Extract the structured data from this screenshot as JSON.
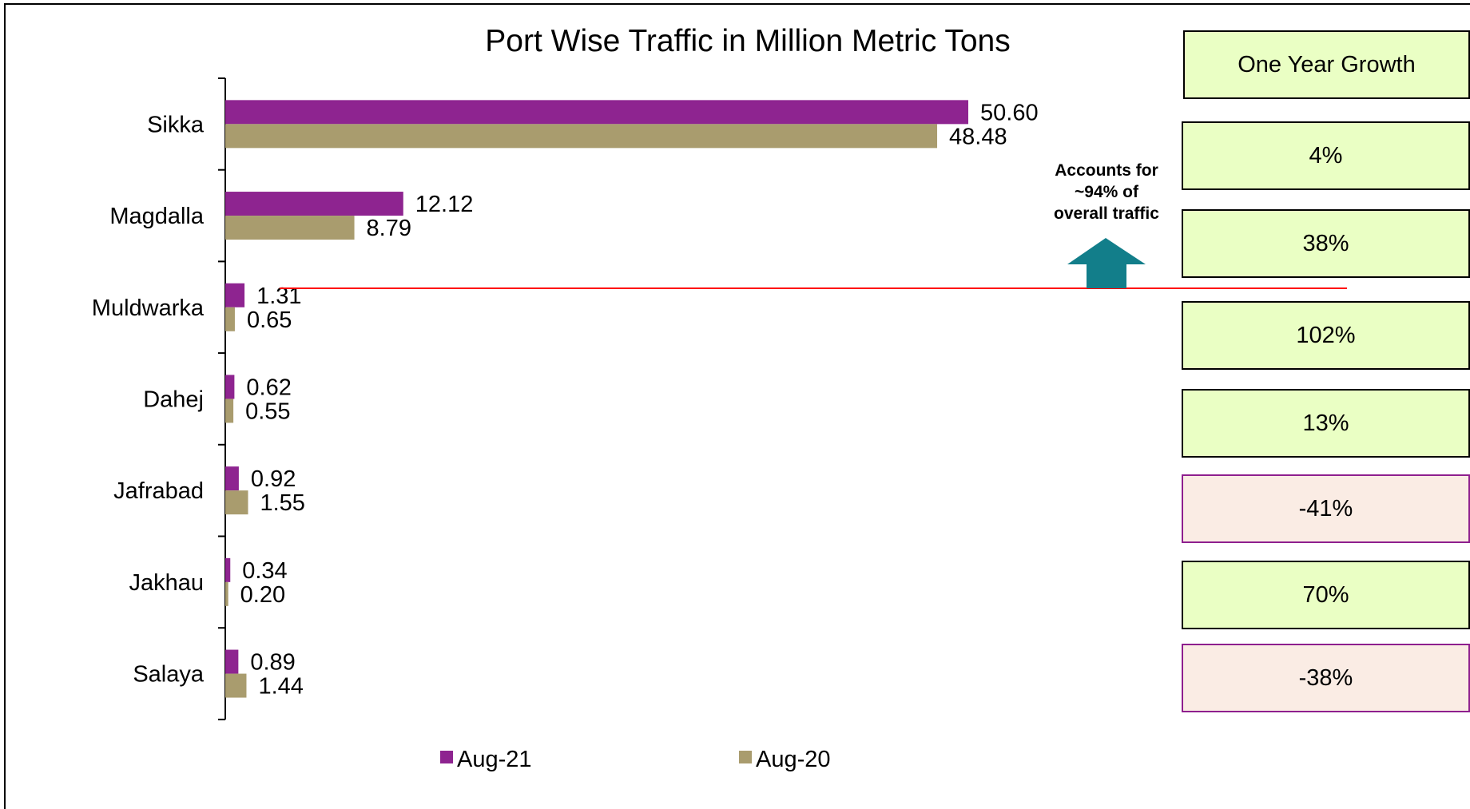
{
  "chart_data": {
    "type": "bar",
    "orientation": "horizontal",
    "title": "Port Wise Traffic in Million Metric Tons",
    "categories": [
      "Sikka",
      "Magdalla",
      "Muldwarka",
      "Dahej",
      "Jafrabad",
      "Jakhau",
      "Salaya"
    ],
    "series": [
      {
        "name": "Aug-21",
        "values": [
          50.6,
          12.12,
          1.31,
          0.62,
          0.92,
          0.34,
          0.89
        ],
        "labels": [
          "50.60",
          "12.12",
          "1.31",
          "0.62",
          "0.92",
          "0.34",
          "0.89"
        ]
      },
      {
        "name": "Aug-20",
        "values": [
          48.48,
          8.79,
          0.65,
          0.55,
          1.55,
          0.2,
          1.44
        ],
        "labels": [
          "48.48",
          "8.79",
          "0.65",
          "0.55",
          "1.55",
          "0.20",
          "1.44"
        ]
      }
    ],
    "xlim": [
      0,
      60
    ],
    "legend_position": "bottom",
    "grid": false
  },
  "growth": {
    "header": "One Year Growth",
    "values": [
      "4%",
      "38%",
      "102%",
      "13%",
      "-41%",
      "70%",
      "-38%"
    ]
  },
  "annotation": {
    "line1": "Accounts for",
    "line2": "~94% of",
    "line3": "overall traffic"
  },
  "colors": {
    "aug21": "#8e2490",
    "aug20": "#a99c6e",
    "arrow": "#127e8a",
    "divider": "#ff0000",
    "growth_positive_bg": "#eaffc4",
    "growth_negative_bg": "#faece4"
  }
}
